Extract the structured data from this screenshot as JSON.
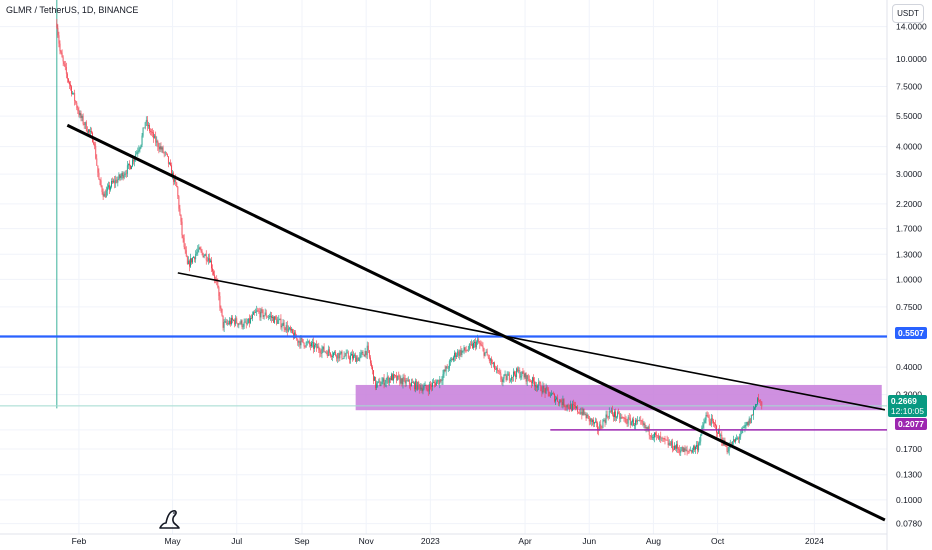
{
  "header": {
    "symbol_title": "GLMR / TetherUS, 1D, BINANCE",
    "currency_button": "USDT"
  },
  "price_tags": {
    "horizontal_level": "0.5507",
    "support_level": "0.2077",
    "last_price": "0.2669",
    "countdown": "12:10:05"
  },
  "colors": {
    "up": "#089981",
    "down": "#f23645",
    "level_line": "#2962ff",
    "support_line": "#9c27b0",
    "zone_fill": "#c77ddb",
    "trendline": "#000000"
  },
  "chart_data": {
    "type": "candlestick",
    "title": "GLMR / TetherUS, 1D, BINANCE",
    "y_scale": "log",
    "y_ticks": [
      "14.0000",
      "10.0000",
      "7.5000",
      "5.5000",
      "4.0000",
      "3.0000",
      "2.2000",
      "1.7000",
      "1.3000",
      "1.0000",
      "0.7500",
      "0.5507",
      "0.4000",
      "0.3000",
      "0.2669",
      "0.2077",
      "0.1700",
      "0.1300",
      "0.1000",
      "0.0780"
    ],
    "x_ticks": [
      "Feb",
      "May",
      "Jul",
      "Sep",
      "Nov",
      "2023",
      "Apr",
      "Jun",
      "Aug",
      "Oct",
      "2024"
    ],
    "x_tick_dates": [
      "2022-02-01",
      "2022-05-01",
      "2022-07-01",
      "2022-09-01",
      "2022-11-01",
      "2023-01-01",
      "2023-04-01",
      "2023-06-01",
      "2023-08-01",
      "2023-10-01",
      "2024-01-01"
    ],
    "y_range": [
      0.07,
      18.5
    ],
    "x_range": [
      "2021-11-18",
      "2024-03-10"
    ],
    "price_path": [
      [
        "2022-01-11",
        14.5
      ],
      [
        "2022-01-14",
        10.8
      ],
      [
        "2022-01-20",
        8.5
      ],
      [
        "2022-01-26",
        7.0
      ],
      [
        "2022-02-02",
        5.5
      ],
      [
        "2022-02-08",
        4.9
      ],
      [
        "2022-02-15",
        4.3
      ],
      [
        "2022-02-20",
        2.8
      ],
      [
        "2022-02-25",
        2.4
      ],
      [
        "2022-03-04",
        2.7
      ],
      [
        "2022-03-12",
        2.9
      ],
      [
        "2022-03-22",
        3.3
      ],
      [
        "2022-04-01",
        4.2
      ],
      [
        "2022-04-05",
        5.2
      ],
      [
        "2022-04-14",
        4.3
      ],
      [
        "2022-04-25",
        3.6
      ],
      [
        "2022-05-05",
        2.6
      ],
      [
        "2022-05-10",
        1.6
      ],
      [
        "2022-05-15",
        1.15
      ],
      [
        "2022-05-25",
        1.35
      ],
      [
        "2022-06-05",
        1.25
      ],
      [
        "2022-06-12",
        0.95
      ],
      [
        "2022-06-18",
        0.62
      ],
      [
        "2022-06-28",
        0.65
      ],
      [
        "2022-07-10",
        0.62
      ],
      [
        "2022-07-20",
        0.71
      ],
      [
        "2022-08-01",
        0.68
      ],
      [
        "2022-08-15",
        0.62
      ],
      [
        "2022-08-28",
        0.53
      ],
      [
        "2022-09-10",
        0.5
      ],
      [
        "2022-09-25",
        0.47
      ],
      [
        "2022-10-10",
        0.45
      ],
      [
        "2022-10-25",
        0.44
      ],
      [
        "2022-11-02",
        0.48
      ],
      [
        "2022-11-10",
        0.33
      ],
      [
        "2022-11-25",
        0.36
      ],
      [
        "2022-12-10",
        0.34
      ],
      [
        "2022-12-28",
        0.32
      ],
      [
        "2023-01-10",
        0.35
      ],
      [
        "2023-01-25",
        0.46
      ],
      [
        "2023-02-05",
        0.48
      ],
      [
        "2023-02-15",
        0.52
      ],
      [
        "2023-02-25",
        0.44
      ],
      [
        "2023-03-10",
        0.35
      ],
      [
        "2023-03-25",
        0.38
      ],
      [
        "2023-04-10",
        0.34
      ],
      [
        "2023-04-25",
        0.3
      ],
      [
        "2023-05-10",
        0.27
      ],
      [
        "2023-05-25",
        0.25
      ],
      [
        "2023-06-10",
        0.21
      ],
      [
        "2023-06-20",
        0.25
      ],
      [
        "2023-07-05",
        0.23
      ],
      [
        "2023-07-20",
        0.22
      ],
      [
        "2023-08-05",
        0.19
      ],
      [
        "2023-08-20",
        0.175
      ],
      [
        "2023-09-01",
        0.165
      ],
      [
        "2023-09-12",
        0.175
      ],
      [
        "2023-09-20",
        0.24
      ],
      [
        "2023-09-30",
        0.21
      ],
      [
        "2023-10-10",
        0.17
      ],
      [
        "2023-10-20",
        0.19
      ],
      [
        "2023-11-01",
        0.23
      ],
      [
        "2023-11-08",
        0.29
      ],
      [
        "2023-11-12",
        0.267
      ]
    ],
    "last_price": 0.2669,
    "drawings": [
      {
        "type": "trendline",
        "name": "main-descending-trendline",
        "from": [
          "2022-01-21",
          5.0
        ],
        "to": [
          "2024-03-08",
          0.081
        ]
      },
      {
        "type": "trendline",
        "name": "secondary-descending-trendline",
        "from": [
          "2022-05-06",
          1.07
        ],
        "to": [
          "2024-03-08",
          0.256
        ]
      },
      {
        "type": "horizontal_line",
        "name": "resistance-level-line",
        "price": 0.5507,
        "from": "2021-11-18",
        "to": "2024-03-10"
      },
      {
        "type": "horizontal_ray",
        "name": "support-level-line",
        "price": 0.2077,
        "from": "2023-04-25",
        "to": "2024-03-10"
      },
      {
        "type": "zone",
        "name": "supply-zone",
        "price_low": 0.255,
        "price_high": 0.332,
        "from": "2022-10-22",
        "to": "2024-03-05"
      },
      {
        "type": "vertical_line",
        "name": "listing-date-line",
        "date": "2022-01-11",
        "price_low": 0.26,
        "price_high": 18.5
      },
      {
        "type": "horizontal_line",
        "name": "last-price-line",
        "price": 0.2669,
        "from": "2021-11-18",
        "to": "2024-03-10"
      }
    ]
  }
}
